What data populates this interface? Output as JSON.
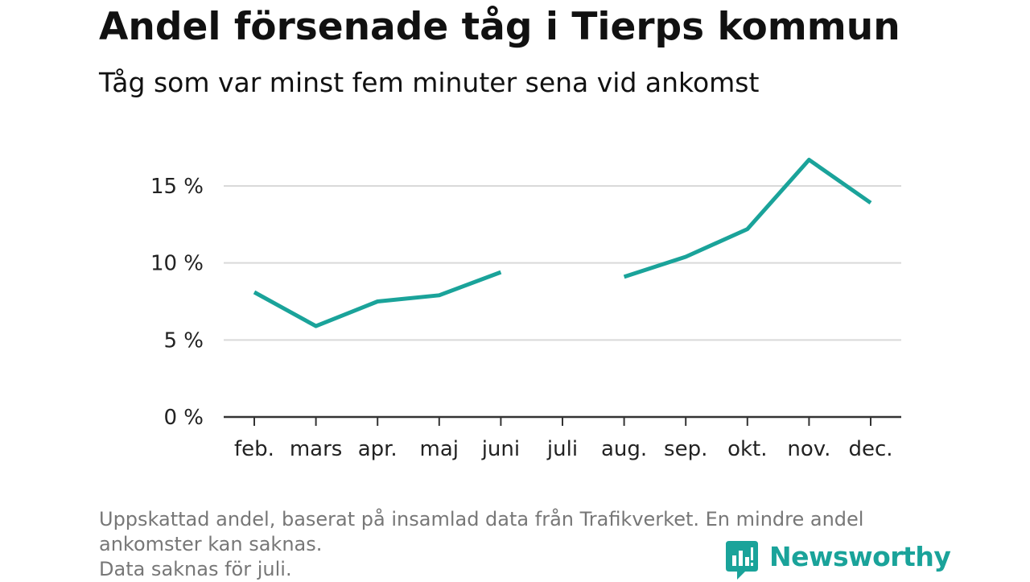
{
  "header": {
    "title": "Andel försenade tåg i Tierps kommun",
    "subtitle": "Tåg som var minst fem minuter sena vid ankomst"
  },
  "chart_data": {
    "type": "line",
    "title": "Andel försenade tåg i Tierps kommun",
    "subtitle": "Tåg som var minst fem minuter sena vid ankomst",
    "categories": [
      "feb.",
      "mars",
      "apr.",
      "maj",
      "juni",
      "juli",
      "aug.",
      "sep.",
      "okt.",
      "nov.",
      "dec."
    ],
    "series": [
      {
        "values": [
          8.1,
          5.9,
          7.5,
          7.9,
          9.4,
          null,
          9.1,
          10.4,
          12.2,
          16.7,
          13.9
        ]
      }
    ],
    "yticks": [
      0,
      5,
      10,
      15
    ],
    "ytick_labels": [
      "0 %",
      "5 %",
      "10 %",
      "15 %"
    ],
    "ylim": [
      0,
      17
    ],
    "grid": "horizontal",
    "line_color": "#1aa39a",
    "xlabel": "",
    "ylabel": ""
  },
  "footnote": {
    "line1": "Uppskattad andel, baserat på insamlad data från Trafikverket. En mindre andel",
    "line2": "ankomster kan saknas.",
    "line3": "Data saknas för juli."
  },
  "brand": {
    "name": "Newsworthy",
    "icon": "newsworthy-logo-icon",
    "color": "#1aa39a"
  }
}
